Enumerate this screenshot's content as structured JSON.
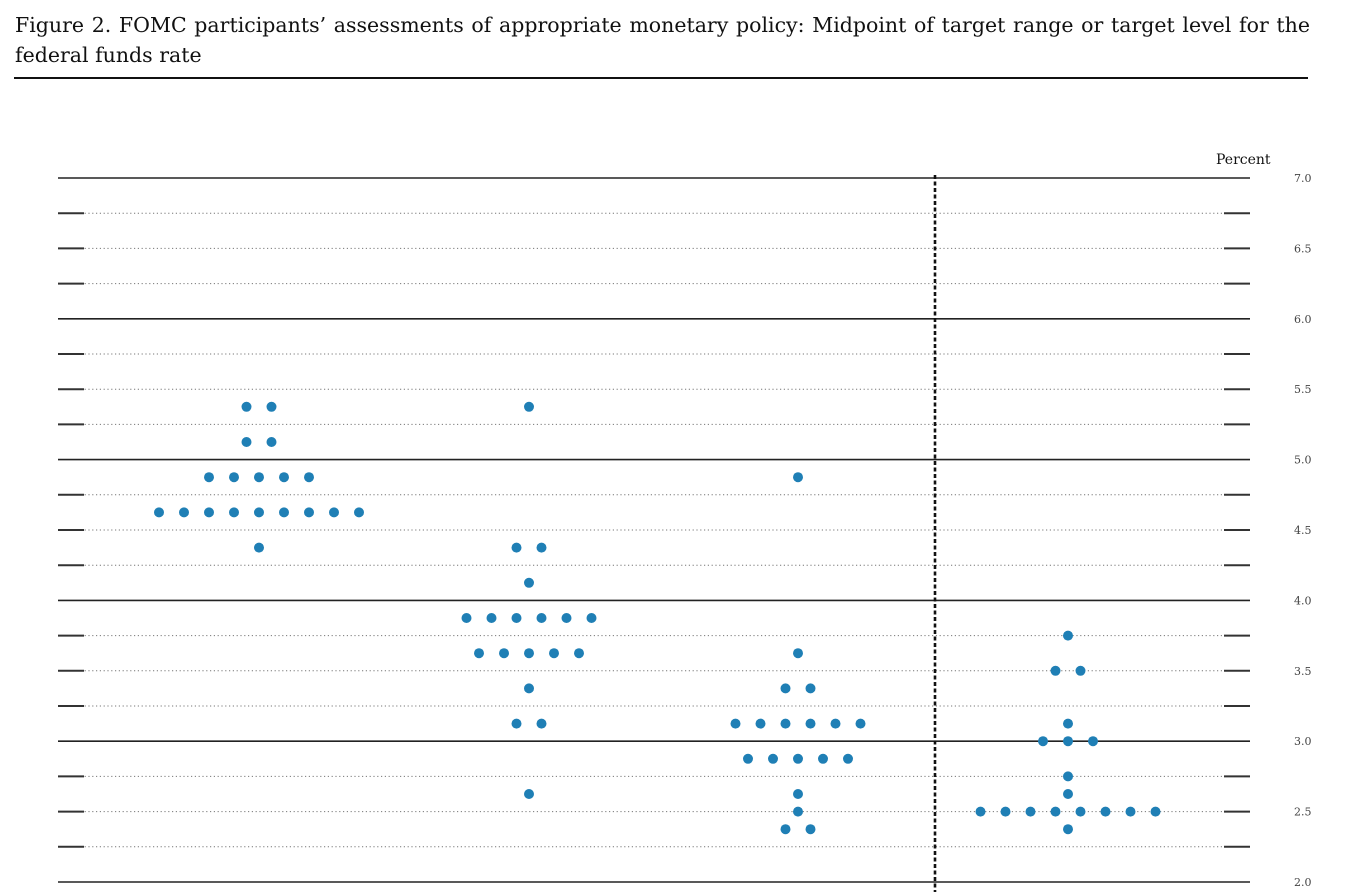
{
  "figure": {
    "title": "Figure 2.  FOMC participants’ assessments of appropriate monetary policy: Midpoint of target range or target level for the federal funds rate"
  },
  "chart_data": {
    "type": "scatter",
    "title": "Figure 2.  FOMC participants’ assessments of appropriate monetary policy: Midpoint of target range or target level for the federal funds rate",
    "ylabel": "Percent",
    "xlabel": "",
    "ylim": [
      2.0,
      7.0
    ],
    "y_ticks": [
      "2.0",
      "2.5",
      "3.0",
      "3.5",
      "4.0",
      "4.5",
      "5.0",
      "5.5",
      "6.0",
      "6.5",
      "7.0"
    ],
    "grid": "dotted lines every 0.25 percentage point, solid lines at whole percents",
    "x_labels_visible": false,
    "dot_color": "#1f7fb5",
    "separator": "vertical dashed line before the last column",
    "columns": [
      {
        "dots": [
          {
            "y": 5.375,
            "count": 2
          },
          {
            "y": 5.125,
            "count": 2
          },
          {
            "y": 4.875,
            "count": 5
          },
          {
            "y": 4.625,
            "count": 9
          },
          {
            "y": 4.375,
            "count": 1
          }
        ]
      },
      {
        "dots": [
          {
            "y": 5.375,
            "count": 1
          },
          {
            "y": 4.375,
            "count": 2
          },
          {
            "y": 4.125,
            "count": 1
          },
          {
            "y": 3.875,
            "count": 6
          },
          {
            "y": 3.625,
            "count": 5
          },
          {
            "y": 3.375,
            "count": 1
          },
          {
            "y": 3.125,
            "count": 2
          },
          {
            "y": 2.625,
            "count": 1
          }
        ]
      },
      {
        "dots": [
          {
            "y": 4.875,
            "count": 1
          },
          {
            "y": 3.625,
            "count": 1
          },
          {
            "y": 3.375,
            "count": 2
          },
          {
            "y": 3.125,
            "count": 6
          },
          {
            "y": 2.875,
            "count": 5
          },
          {
            "y": 2.625,
            "count": 1
          },
          {
            "y": 2.5,
            "count": 1
          },
          {
            "y": 2.375,
            "count": 2
          }
        ]
      },
      {
        "dots": [
          {
            "y": 3.75,
            "count": 1
          },
          {
            "y": 3.5,
            "count": 2
          },
          {
            "y": 3.125,
            "count": 1
          },
          {
            "y": 3.0,
            "count": 3
          },
          {
            "y": 2.75,
            "count": 1
          },
          {
            "y": 2.625,
            "count": 1
          },
          {
            "y": 2.5,
            "count": 8
          },
          {
            "y": 2.375,
            "count": 1
          }
        ]
      }
    ]
  }
}
